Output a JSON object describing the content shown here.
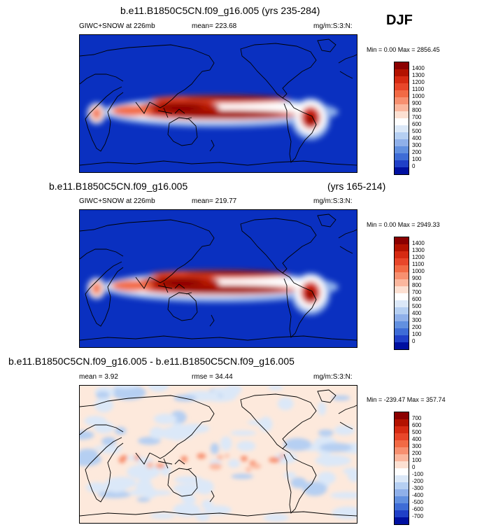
{
  "season": "DJF",
  "panels": [
    {
      "title": "b.e11.B1850C5CN.f09_g16.005 (yrs 235-284)",
      "title2": "",
      "variable": "GIWC+SNOW at 226mb",
      "mean": "mean= 223.68",
      "rmse": "",
      "units": "mg/m:S:3:N:",
      "minmax": "Min =   0.00 Max = 2856.45",
      "map_type": "positive",
      "levels": [
        "1400",
        "1300",
        "1200",
        "1100",
        "1000",
        "900",
        "800",
        "700",
        "600",
        "500",
        "400",
        "300",
        "200",
        "100",
        "0"
      ],
      "colors": [
        "#8b0000",
        "#b31200",
        "#d62a12",
        "#e8462a",
        "#f26a45",
        "#f79070",
        "#fbb79e",
        "#fde0d2",
        "#ffffff",
        "#dbe8f8",
        "#b5cff2",
        "#8fb0ea",
        "#6290e0",
        "#3e6cd6",
        "#2040c8",
        "#0010a0"
      ]
    },
    {
      "title": "b.e11.B1850C5CN.f09_g16.005",
      "title2": "(yrs 165-214)",
      "variable": "GIWC+SNOW at 226mb",
      "mean": "mean= 219.77",
      "rmse": "",
      "units": "mg/m:S:3:N:",
      "minmax": "Min =   0.00 Max = 2949.33",
      "map_type": "positive",
      "levels": [
        "1400",
        "1300",
        "1200",
        "1100",
        "1000",
        "900",
        "800",
        "700",
        "600",
        "500",
        "400",
        "300",
        "200",
        "100",
        "0"
      ],
      "colors": [
        "#8b0000",
        "#b31200",
        "#d62a12",
        "#e8462a",
        "#f26a45",
        "#f79070",
        "#fbb79e",
        "#fde0d2",
        "#ffffff",
        "#dbe8f8",
        "#b5cff2",
        "#8fb0ea",
        "#6290e0",
        "#3e6cd6",
        "#2040c8",
        "#0010a0"
      ]
    },
    {
      "title": "b.e11.B1850C5CN.f09_g16.005 - b.e11.B1850C5CN.f09_g16.005",
      "title2": "",
      "variable": "",
      "mean": "mean =   3.92",
      "rmse": "rmse =  34.44",
      "units": "mg/m:S:3:N:",
      "minmax": "Min = -239.47 Max = 357.74",
      "map_type": "difference",
      "levels": [
        "700",
        "600",
        "500",
        "400",
        "300",
        "200",
        "100",
        "0",
        "-100",
        "-200",
        "-300",
        "-400",
        "-500",
        "-600",
        "-700"
      ],
      "colors": [
        "#8b0000",
        "#b31200",
        "#d62a12",
        "#e8462a",
        "#f26a45",
        "#f79070",
        "#fbb79e",
        "#fde0d2",
        "#ffffff",
        "#dbe8f8",
        "#b5cff2",
        "#8fb0ea",
        "#6290e0",
        "#3e6cd6",
        "#2040c8",
        "#0010a0"
      ]
    }
  ]
}
